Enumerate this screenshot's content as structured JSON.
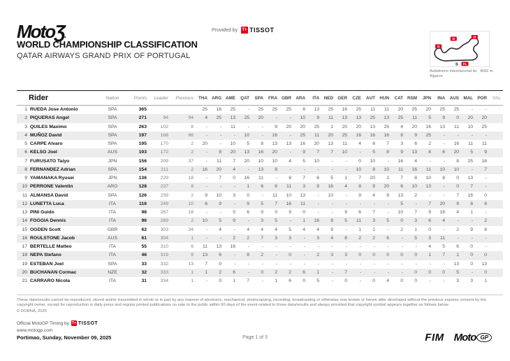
{
  "header": {
    "logo_text": "MotoƷ",
    "logo_dot": ".",
    "provided_by": "Provided by",
    "tissot_mark": "T+",
    "tissot_name": "TISSOT",
    "title": "WORLD CHAMPIONSHIP CLASSIFICATION",
    "subtitle": "QATAR AIRWAYS GRAND PRIX OF PORTUGAL"
  },
  "track": {
    "name_line1": "Autódromo Internacional do",
    "name_line2": "Algarve",
    "length": "4592 m.",
    "marker_i1": "I1",
    "marker_i2": "I2",
    "marker_i3": "I3",
    "marker_s": "S",
    "marker_fl": "FL"
  },
  "table": {
    "columns": {
      "rider": "Rider",
      "nation": "Nation",
      "points": "Points",
      "leader": "Leader",
      "previous": "Previous"
    },
    "races": [
      "THA",
      "ARG",
      "AME",
      "QAT",
      "SPA",
      "FRA",
      "GBR",
      "ARA",
      "ITA",
      "NED",
      "GER",
      "CZE",
      "AUT",
      "HUN",
      "CAT",
      "RSM",
      "JPN",
      "INA",
      "AUS",
      "MAL",
      "POR",
      "VAL"
    ],
    "future_races": [
      "VAL"
    ],
    "rows": [
      {
        "pos": 1,
        "rider": "RUEDA Jose Antonio",
        "nation": "SPA",
        "points": "365",
        "leader": "",
        "previous": "",
        "scores": [
          "25",
          "16",
          "25",
          "-",
          "25",
          "25",
          "25",
          "8",
          "13",
          "25",
          "16",
          "25",
          "11",
          "11",
          "20",
          "25",
          "20",
          "25",
          "25",
          "-",
          "-",
          ""
        ]
      },
      {
        "pos": 2,
        "rider": "PIQUERAS Angel",
        "nation": "SPA",
        "points": "271",
        "leader": "94",
        "previous": "94",
        "scores": [
          "4",
          "25",
          "13",
          "25",
          "20",
          "-",
          "-",
          "10",
          "9",
          "11",
          "13",
          "13",
          "25",
          "13",
          "25",
          "11",
          "5",
          "9",
          "0",
          "20",
          "20",
          ""
        ]
      },
      {
        "pos": 3,
        "rider": "QUILES Maximo",
        "nation": "SPA",
        "points": "263",
        "leader": "102",
        "previous": "8",
        "scores": [
          "-",
          "-",
          "11",
          "-",
          "-",
          "9",
          "20",
          "20",
          "25",
          "1",
          "20",
          "20",
          "13",
          "25",
          "4",
          "20",
          "16",
          "13",
          "11",
          "10",
          "25",
          ""
        ]
      },
      {
        "pos": 4,
        "rider": "MUÑOZ David",
        "nation": "SPA",
        "points": "197",
        "leader": "168",
        "previous": "66",
        "scores": [
          "-",
          "-",
          "-",
          "10",
          "-",
          "16",
          "-",
          "25",
          "11",
          "20",
          "25",
          "16",
          "16",
          "16",
          "8",
          "9",
          "25",
          "-",
          "-",
          "-",
          "-",
          ""
        ]
      },
      {
        "pos": 5,
        "rider": "CARPE Alvaro",
        "nation": "SPA",
        "points": "195",
        "leader": "170",
        "previous": "2",
        "scores": [
          "20",
          "-",
          "10",
          "5",
          "8",
          "13",
          "13",
          "16",
          "20",
          "13",
          "11",
          "4",
          "6",
          "7",
          "3",
          "6",
          "2",
          "-",
          "16",
          "11",
          "11",
          ""
        ]
      },
      {
        "pos": 6,
        "rider": "KELSO Joel",
        "nation": "AUS",
        "points": "193",
        "leader": "172",
        "previous": "2",
        "scores": [
          "-",
          "8",
          "20",
          "13",
          "16",
          "20",
          "-",
          "9",
          "7",
          "7",
          "10",
          "-",
          "5",
          "8",
          "9",
          "13",
          "8",
          "6",
          "20",
          "5",
          "9",
          ""
        ]
      },
      {
        "pos": 7,
        "rider": "FURUSATO Taiyo",
        "nation": "JPN",
        "points": "156",
        "leader": "209",
        "previous": "37",
        "scores": [
          "-",
          "11",
          "7",
          "20",
          "10",
          "10",
          "4",
          "5",
          "10",
          "-",
          "-",
          "0",
          "10",
          "-",
          "16",
          "4",
          "-",
          "-",
          "8",
          "25",
          "16",
          ""
        ]
      },
      {
        "pos": 8,
        "rider": "FERNANDEZ Adrian",
        "nation": "SPA",
        "points": "154",
        "leader": "211",
        "previous": "2",
        "scores": [
          "16",
          "20",
          "4",
          "-",
          "13",
          "8",
          "-",
          "-",
          "-",
          "-",
          "-",
          "10",
          "8",
          "10",
          "11",
          "16",
          "11",
          "10",
          "10",
          "-",
          "7",
          ""
        ]
      },
      {
        "pos": 9,
        "rider": "YAMANAKA Ryusei",
        "nation": "JPN",
        "points": "136",
        "leader": "229",
        "previous": "18",
        "scores": [
          "-",
          "7",
          "0",
          "16",
          "11",
          "-",
          "8",
          "7",
          "6",
          "5",
          "1",
          "7",
          "20",
          "2",
          "7",
          "8",
          "10",
          "8",
          "0",
          "13",
          "-",
          ""
        ]
      },
      {
        "pos": 10,
        "rider": "PERRONE Valentin",
        "nation": "ARG",
        "points": "128",
        "leader": "237",
        "previous": "8",
        "scores": [
          "-",
          "-",
          "-",
          "1",
          "6",
          "6",
          "11",
          "3",
          "8",
          "16",
          "4",
          "8",
          "9",
          "20",
          "6",
          "10",
          "13",
          "-",
          "0",
          "7",
          "-",
          ""
        ]
      },
      {
        "pos": 11,
        "rider": "ALMANSA David",
        "nation": "SPA",
        "points": "126",
        "leader": "239",
        "previous": "2",
        "scores": [
          "9",
          "10",
          "3",
          "0",
          "-",
          "11",
          "10",
          "13",
          "-",
          "10",
          "-",
          "9",
          "4",
          "9",
          "13",
          "2",
          "-",
          "-",
          "7",
          "16",
          "0",
          ""
        ]
      },
      {
        "pos": 12,
        "rider": "LUNETTA Luca",
        "nation": "ITA",
        "points": "116",
        "leader": "249",
        "previous": "10",
        "scores": [
          "6",
          "9",
          "-",
          "9",
          "5",
          "7",
          "16",
          "11",
          "-",
          "-",
          "-",
          "-",
          "-",
          "-",
          "5",
          "-",
          "7",
          "20",
          "9",
          "6",
          "6",
          ""
        ]
      },
      {
        "pos": 13,
        "rider": "PINI Guido",
        "nation": "ITA",
        "points": "98",
        "leader": "267",
        "previous": "18",
        "scores": [
          "-",
          "-",
          "5",
          "6",
          "9",
          "0",
          "9",
          "0",
          "-",
          "-",
          "9",
          "6",
          "7",
          "-",
          "10",
          "7",
          "9",
          "16",
          "4",
          "1",
          "-",
          ""
        ]
      },
      {
        "pos": 14,
        "rider": "FOGGIA Dennis",
        "nation": "ITA",
        "points": "96",
        "leader": "269",
        "previous": "2",
        "scores": [
          "10",
          "5",
          "9",
          "-",
          "3",
          "5",
          "-",
          "1",
          "16",
          "8",
          "5",
          "11",
          "3",
          "5",
          "0",
          "3",
          "6",
          "4",
          "-",
          "-",
          "2",
          ""
        ]
      },
      {
        "pos": 15,
        "rider": "OGDEN Scott",
        "nation": "GBR",
        "points": "62",
        "leader": "303",
        "previous": "34",
        "scores": [
          "-",
          "4",
          "-",
          "4",
          "4",
          "4",
          "5",
          "4",
          "4",
          "9",
          "-",
          "1",
          "1",
          "-",
          "2",
          "1",
          "0",
          "-",
          "2",
          "9",
          "8",
          ""
        ]
      },
      {
        "pos": 16,
        "rider": "ROULSTONE Jacob",
        "nation": "AUS",
        "points": "61",
        "leader": "304",
        "previous": "1",
        "scores": [
          "-",
          "-",
          "2",
          "2",
          "7",
          "3",
          "3",
          "-",
          "3",
          "4",
          "8",
          "2",
          "2",
          "6",
          "-",
          "5",
          "3",
          "11",
          "-",
          "-",
          "-",
          ""
        ]
      },
      {
        "pos": 17,
        "rider": "BERTELLE Matteo",
        "nation": "ITA",
        "points": "55",
        "leader": "310",
        "previous": "6",
        "scores": [
          "11",
          "13",
          "16",
          "-",
          "-",
          "-",
          "-",
          "-",
          "-",
          "-",
          "-",
          "-",
          "-",
          "-",
          "-",
          "-",
          "4",
          "5",
          "6",
          "0",
          "-",
          ""
        ]
      },
      {
        "pos": 18,
        "rider": "NEPA Stefano",
        "nation": "ITA",
        "points": "46",
        "leader": "319",
        "previous": "9",
        "scores": [
          "13",
          "6",
          "-",
          "8",
          "2",
          "-",
          "0",
          "-",
          "2",
          "3",
          "3",
          "0",
          "0",
          "0",
          "0",
          "0",
          "1",
          "7",
          "1",
          "0",
          "0",
          ""
        ]
      },
      {
        "pos": 19,
        "rider": "ESTEBAN Joel",
        "nation": "SPA",
        "points": "33",
        "leader": "332",
        "previous": "13",
        "scores": [
          "7",
          "0",
          "-",
          "-",
          "-",
          "-",
          "-",
          "-",
          "-",
          "-",
          "-",
          "-",
          "-",
          "-",
          "-",
          "-",
          "-",
          "-",
          "13",
          "0",
          "13",
          ""
        ]
      },
      {
        "pos": 20,
        "rider": "BUCHANAN Cormac",
        "nation": "NZE",
        "points": "32",
        "leader": "333",
        "previous": "1",
        "scores": [
          "1",
          "2",
          "6",
          "-",
          "0",
          "2",
          "2",
          "6",
          "1",
          "-",
          "7",
          "-",
          "-",
          "-",
          "-",
          "0",
          "0",
          "0",
          "5",
          "-",
          "0",
          ""
        ]
      },
      {
        "pos": 21,
        "rider": "CARRARO Nicola",
        "nation": "ITA",
        "points": "31",
        "leader": "334",
        "previous": "1",
        "scores": [
          "-",
          "0",
          "1",
          "7",
          "-",
          "1",
          "6",
          "0",
          "5",
          "-",
          "0",
          "-",
          "0",
          "4",
          "0",
          "0",
          "-",
          "-",
          "3",
          "3",
          "1",
          ""
        ]
      }
    ]
  },
  "footer": {
    "disclaimer_1": "These data/results cannot be reproduced, stored and/or transmitted in whole or in part by any manner of electronic, mechanical, photocopying, recording, broadcasting or otherwise now known or herein after developed without the previous express consent by the copyright owner, except for reproduction in daily press and regular printed publications on sale to the public within 60 days of the event related to those data/results and always provided that copyright symbol appears together as follows below.",
    "copyright": "© DORNA, 2025",
    "timing_label": "Official MotoGP Timing by",
    "website": "www.motogp.com",
    "location_date": "Portimao, Sunday, November 09, 2025",
    "page": "Page 1 of 3",
    "fim_logo": "FIM",
    "motogp_moto": "Moto",
    "motogp_gp": "GP"
  },
  "colors": {
    "accent_red": "#e2001a",
    "row_shade": "#ececec"
  }
}
